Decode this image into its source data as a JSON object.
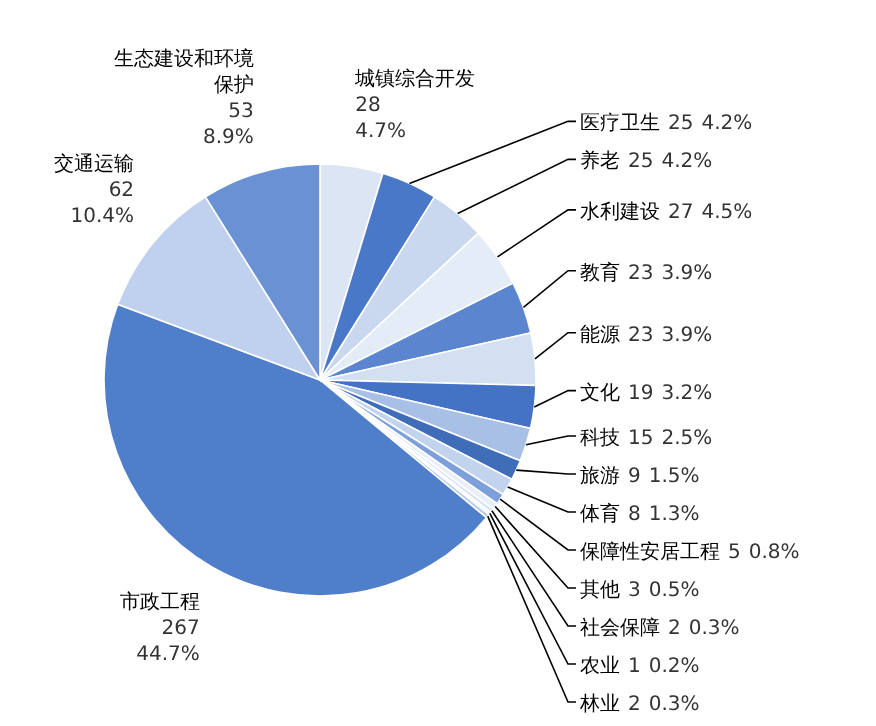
{
  "chart_data": {
    "type": "pie",
    "categories": [
      "城镇综合开发",
      "医疗卫生",
      "养老",
      "水利建设",
      "教育",
      "能源",
      "文化",
      "科技",
      "旅游",
      "体育",
      "保障性安居工程",
      "其他",
      "社会保障",
      "农业",
      "林业",
      "市政工程",
      "交通运输",
      "生态建设和环境保护"
    ],
    "values": [
      4.7,
      4.2,
      4.2,
      4.5,
      3.9,
      3.9,
      3.2,
      2.5,
      1.5,
      1.3,
      0.8,
      0.5,
      0.3,
      0.2,
      0.3,
      44.7,
      10.4,
      8.9
    ],
    "value_labels": [
      "28\n4.7%",
      "25\n4.2%",
      "25\n4.2%",
      "27\n4.5%",
      "23\n3.9%",
      "23\n3.9%",
      "19\n3.2%",
      "15\n2.5%",
      "9\n1.5%",
      "8\n1.3%",
      "5\n0.8%",
      "3\n0.5%",
      "2\n0.3%",
      "1\n0.2%",
      "2\n0.3%",
      "267\n44.7%",
      "62\n10.4%",
      "53\n8.9%"
    ],
    "colors": [
      "#dbe5f3",
      "#4a78c8",
      "#c9d8ef",
      "#e4ecf7",
      "#5b86cf",
      "#d3e0f2",
      "#4472c4",
      "#a9c0e6",
      "#3f6db8",
      "#c2d3ee",
      "#7d9fda",
      "#e9eff9",
      "#d6e1f3",
      "#eef3fa",
      "#b8cbeb",
      "#4f7ecb",
      "#bfd1ee",
      "#6a91d3"
    ]
  }
}
